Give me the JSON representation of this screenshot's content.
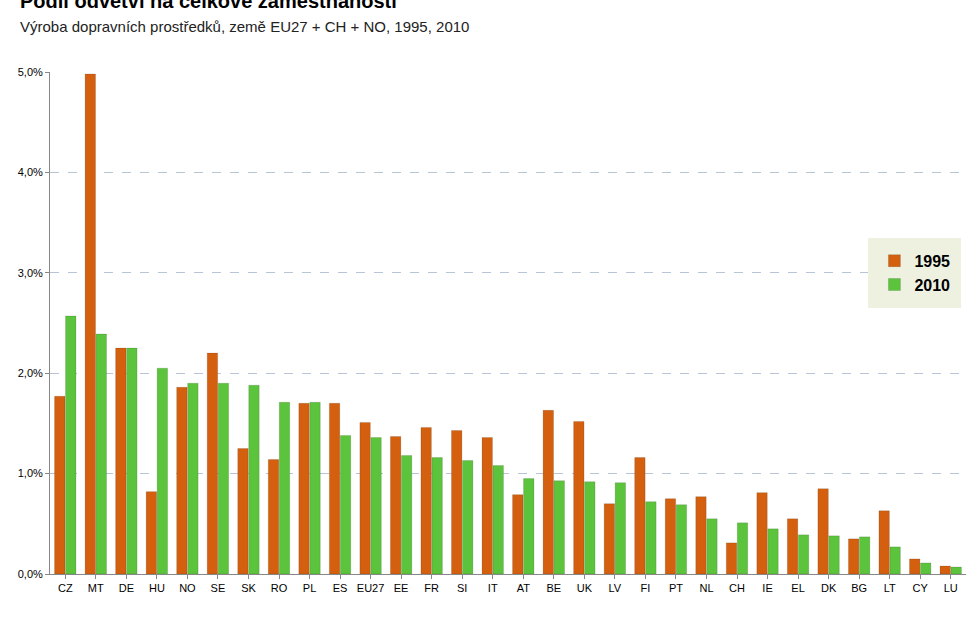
{
  "chart_data": {
    "type": "bar",
    "title": "Podíl odvětví na celkové zaměstnanosti",
    "subtitle": "Výroba dopravních prostředků, země EU27 + CH + NO, 1995, 2010",
    "categories": [
      "CZ",
      "MT",
      "DE",
      "HU",
      "NO",
      "SE",
      "SK",
      "RO",
      "PL",
      "ES",
      "EU27",
      "EE",
      "FR",
      "SI",
      "IT",
      "AT",
      "BE",
      "UK",
      "LV",
      "FI",
      "PT",
      "NL",
      "CH",
      "IE",
      "EL",
      "DK",
      "BG",
      "LT",
      "CY",
      "LU"
    ],
    "series": [
      {
        "name": "1995",
        "color": "#D4600F",
        "values": [
          1.77,
          4.98,
          2.25,
          0.82,
          1.86,
          2.2,
          1.25,
          1.14,
          1.7,
          1.7,
          1.51,
          1.37,
          1.46,
          1.43,
          1.36,
          0.79,
          1.63,
          1.52,
          0.7,
          1.16,
          0.75,
          0.77,
          0.31,
          0.81,
          0.55,
          0.85,
          0.35,
          0.63,
          0.15,
          0.08
        ]
      },
      {
        "name": "2010",
        "color": "#5CC43C",
        "values": [
          2.57,
          2.39,
          2.25,
          2.05,
          1.9,
          1.9,
          1.88,
          1.71,
          1.71,
          1.38,
          1.36,
          1.18,
          1.16,
          1.13,
          1.08,
          0.95,
          0.93,
          0.92,
          0.91,
          0.72,
          0.69,
          0.55,
          0.51,
          0.45,
          0.39,
          0.38,
          0.37,
          0.27,
          0.11,
          0.07
        ]
      }
    ],
    "ylim": [
      0,
      5
    ],
    "yticks": [
      {
        "value": 0,
        "label": "0,0%"
      },
      {
        "value": 1,
        "label": "1,0%"
      },
      {
        "value": 2,
        "label": "2,0%"
      },
      {
        "value": 3,
        "label": "3,0%"
      },
      {
        "value": 4,
        "label": "4,0%"
      },
      {
        "value": 5,
        "label": "5,0%"
      }
    ],
    "grid": true,
    "legend": "right"
  }
}
